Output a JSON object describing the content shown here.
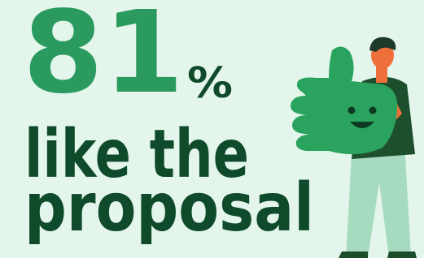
{
  "stat": {
    "value": 81,
    "unit": "%"
  },
  "caption": [
    "like the",
    "proposal"
  ]
}
